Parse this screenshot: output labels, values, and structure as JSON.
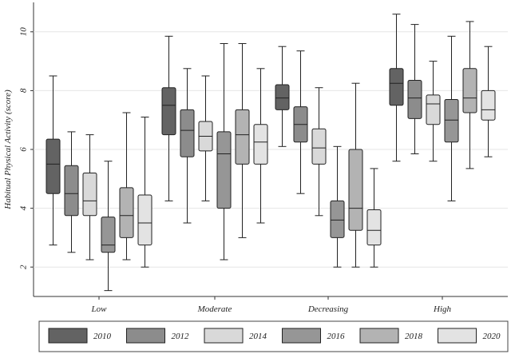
{
  "chart_data": {
    "type": "box",
    "ylabel": "Habitual Physical Activity (score)",
    "ylim": [
      1,
      11
    ],
    "yticks": [
      2,
      4,
      6,
      8,
      10
    ],
    "categories": [
      "Low",
      "Moderate",
      "Decreasing",
      "High"
    ],
    "series": [
      {
        "name": "2010",
        "color": "#636363",
        "boxes": [
          {
            "min": 2.75,
            "q1": 4.5,
            "median": 5.5,
            "q3": 6.35,
            "max": 8.5
          },
          {
            "min": 4.25,
            "q1": 6.5,
            "median": 7.5,
            "q3": 8.1,
            "max": 9.85
          },
          {
            "min": 6.1,
            "q1": 7.35,
            "median": 7.75,
            "q3": 8.2,
            "max": 9.5
          },
          {
            "min": 5.6,
            "q1": 7.5,
            "median": 8.25,
            "q3": 8.75,
            "max": 10.6
          }
        ]
      },
      {
        "name": "2012",
        "color": "#8c8c8c",
        "boxes": [
          {
            "min": 2.5,
            "q1": 3.75,
            "median": 4.5,
            "q3": 5.45,
            "max": 6.6
          },
          {
            "min": 3.5,
            "q1": 5.75,
            "median": 6.65,
            "q3": 7.35,
            "max": 8.75
          },
          {
            "min": 4.5,
            "q1": 6.25,
            "median": 6.85,
            "q3": 7.45,
            "max": 9.35
          },
          {
            "min": 5.85,
            "q1": 7.05,
            "median": 7.75,
            "q3": 8.35,
            "max": 10.25
          }
        ]
      },
      {
        "name": "2014",
        "color": "#d9d9d9",
        "boxes": [
          {
            "min": 2.25,
            "q1": 3.75,
            "median": 4.25,
            "q3": 5.2,
            "max": 6.5
          },
          {
            "min": 4.25,
            "q1": 5.95,
            "median": 6.45,
            "q3": 6.95,
            "max": 8.5
          },
          {
            "min": 3.75,
            "q1": 5.5,
            "median": 6.05,
            "q3": 6.7,
            "max": 8.1
          },
          {
            "min": 5.6,
            "q1": 6.85,
            "median": 7.55,
            "q3": 7.85,
            "max": 9.0
          }
        ]
      },
      {
        "name": "2016",
        "color": "#969696",
        "boxes": [
          {
            "min": 1.2,
            "q1": 2.5,
            "median": 2.75,
            "q3": 3.7,
            "max": 5.6
          },
          {
            "min": 2.25,
            "q1": 4.0,
            "median": 5.85,
            "q3": 6.6,
            "max": 9.6
          },
          {
            "min": 2.0,
            "q1": 3.0,
            "median": 3.6,
            "q3": 4.25,
            "max": 6.1
          },
          {
            "min": 4.25,
            "q1": 6.25,
            "median": 7.0,
            "q3": 7.7,
            "max": 9.85
          }
        ]
      },
      {
        "name": "2018",
        "color": "#b3b3b3",
        "boxes": [
          {
            "min": 2.25,
            "q1": 3.0,
            "median": 3.75,
            "q3": 4.7,
            "max": 7.25
          },
          {
            "min": 3.0,
            "q1": 5.5,
            "median": 6.5,
            "q3": 7.35,
            "max": 9.6
          },
          {
            "min": 2.0,
            "q1": 3.25,
            "median": 4.0,
            "q3": 6.0,
            "max": 8.25
          },
          {
            "min": 5.35,
            "q1": 7.25,
            "median": 7.75,
            "q3": 8.75,
            "max": 10.35
          }
        ]
      },
      {
        "name": "2020",
        "color": "#e3e3e3",
        "boxes": [
          {
            "min": 2.0,
            "q1": 2.75,
            "median": 3.5,
            "q3": 4.45,
            "max": 7.1
          },
          {
            "min": 3.5,
            "q1": 5.5,
            "median": 6.25,
            "q3": 6.85,
            "max": 8.75
          },
          {
            "min": 2.0,
            "q1": 2.75,
            "median": 3.25,
            "q3": 3.95,
            "max": 5.35
          },
          {
            "min": 5.75,
            "q1": 7.0,
            "median": 7.35,
            "q3": 8.0,
            "max": 9.5
          }
        ]
      }
    ],
    "legend_position": "bottom"
  }
}
